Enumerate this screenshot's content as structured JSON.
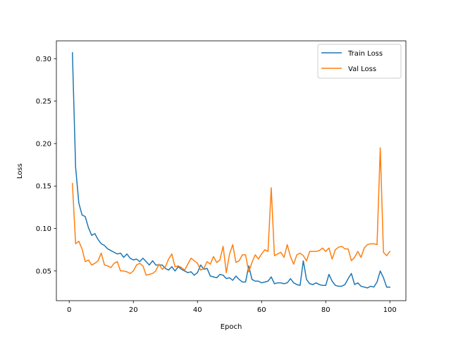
{
  "chart_data": {
    "type": "line",
    "title": "",
    "xlabel": "Epoch",
    "ylabel": "Loss",
    "xlim": [
      -4,
      105
    ],
    "ylim": [
      0.015,
      0.321
    ],
    "xticks": [
      0,
      20,
      40,
      60,
      80,
      100
    ],
    "yticks": [
      0.05,
      0.1,
      0.15,
      0.2,
      0.25,
      0.3
    ],
    "grid": false,
    "legend_position": "top-right",
    "series": [
      {
        "name": "Train Loss",
        "color": "#1f77b4",
        "x": [
          1,
          2,
          3,
          4,
          5,
          6,
          7,
          8,
          9,
          10,
          11,
          12,
          13,
          14,
          15,
          16,
          17,
          18,
          19,
          20,
          21,
          22,
          23,
          24,
          25,
          26,
          27,
          28,
          29,
          30,
          31,
          32,
          33,
          34,
          35,
          36,
          37,
          38,
          39,
          40,
          41,
          42,
          43,
          44,
          45,
          46,
          47,
          48,
          49,
          50,
          51,
          52,
          53,
          54,
          55,
          56,
          57,
          58,
          59,
          60,
          61,
          62,
          63,
          64,
          65,
          66,
          67,
          68,
          69,
          70,
          71,
          72,
          73,
          74,
          75,
          76,
          77,
          78,
          79,
          80,
          81,
          82,
          83,
          84,
          85,
          86,
          87,
          88,
          89,
          90,
          91,
          92,
          93,
          94,
          95,
          96,
          97,
          98,
          99,
          100
        ],
        "values": [
          0.307,
          0.172,
          0.13,
          0.116,
          0.114,
          0.101,
          0.092,
          0.094,
          0.087,
          0.082,
          0.08,
          0.076,
          0.074,
          0.072,
          0.07,
          0.071,
          0.066,
          0.07,
          0.065,
          0.063,
          0.064,
          0.061,
          0.065,
          0.061,
          0.057,
          0.062,
          0.057,
          0.057,
          0.057,
          0.053,
          0.051,
          0.055,
          0.05,
          0.055,
          0.052,
          0.05,
          0.048,
          0.049,
          0.045,
          0.048,
          0.057,
          0.052,
          0.053,
          0.044,
          0.043,
          0.042,
          0.046,
          0.045,
          0.041,
          0.042,
          0.039,
          0.044,
          0.04,
          0.037,
          0.037,
          0.056,
          0.04,
          0.038,
          0.038,
          0.036,
          0.037,
          0.038,
          0.043,
          0.035,
          0.036,
          0.036,
          0.035,
          0.036,
          0.041,
          0.036,
          0.034,
          0.033,
          0.062,
          0.04,
          0.035,
          0.034,
          0.036,
          0.034,
          0.033,
          0.033,
          0.046,
          0.038,
          0.033,
          0.032,
          0.032,
          0.034,
          0.041,
          0.047,
          0.034,
          0.036,
          0.032,
          0.031,
          0.03,
          0.032,
          0.031,
          0.037,
          0.05,
          0.042,
          0.031,
          0.031
        ]
      },
      {
        "name": "Val Loss",
        "color": "#ff7f0e",
        "x": [
          1,
          2,
          3,
          4,
          5,
          6,
          7,
          8,
          9,
          10,
          11,
          12,
          13,
          14,
          15,
          16,
          17,
          18,
          19,
          20,
          21,
          22,
          23,
          24,
          25,
          26,
          27,
          28,
          29,
          30,
          31,
          32,
          33,
          34,
          35,
          36,
          37,
          38,
          39,
          40,
          41,
          42,
          43,
          44,
          45,
          46,
          47,
          48,
          49,
          50,
          51,
          52,
          53,
          54,
          55,
          56,
          57,
          58,
          59,
          60,
          61,
          62,
          63,
          64,
          65,
          66,
          67,
          68,
          69,
          70,
          71,
          72,
          73,
          74,
          75,
          76,
          77,
          78,
          79,
          80,
          81,
          82,
          83,
          84,
          85,
          86,
          87,
          88,
          89,
          90,
          91,
          92,
          93,
          94,
          95,
          96,
          97,
          98,
          99,
          100
        ],
        "values": [
          0.153,
          0.082,
          0.085,
          0.076,
          0.061,
          0.063,
          0.057,
          0.059,
          0.062,
          0.071,
          0.057,
          0.056,
          0.054,
          0.059,
          0.061,
          0.05,
          0.05,
          0.049,
          0.047,
          0.05,
          0.057,
          0.059,
          0.056,
          0.045,
          0.046,
          0.047,
          0.05,
          0.058,
          0.052,
          0.055,
          0.064,
          0.07,
          0.055,
          0.056,
          0.054,
          0.051,
          0.058,
          0.065,
          0.062,
          0.059,
          0.051,
          0.053,
          0.061,
          0.058,
          0.067,
          0.06,
          0.063,
          0.079,
          0.048,
          0.07,
          0.081,
          0.06,
          0.062,
          0.069,
          0.069,
          0.049,
          0.06,
          0.069,
          0.064,
          0.07,
          0.075,
          0.073,
          0.148,
          0.068,
          0.07,
          0.072,
          0.066,
          0.081,
          0.067,
          0.058,
          0.069,
          0.071,
          0.068,
          0.062,
          0.073,
          0.073,
          0.073,
          0.074,
          0.077,
          0.073,
          0.077,
          0.064,
          0.075,
          0.078,
          0.079,
          0.076,
          0.076,
          0.062,
          0.066,
          0.073,
          0.066,
          0.077,
          0.081,
          0.082,
          0.082,
          0.081,
          0.195,
          0.072,
          0.068,
          0.073
        ]
      }
    ]
  }
}
